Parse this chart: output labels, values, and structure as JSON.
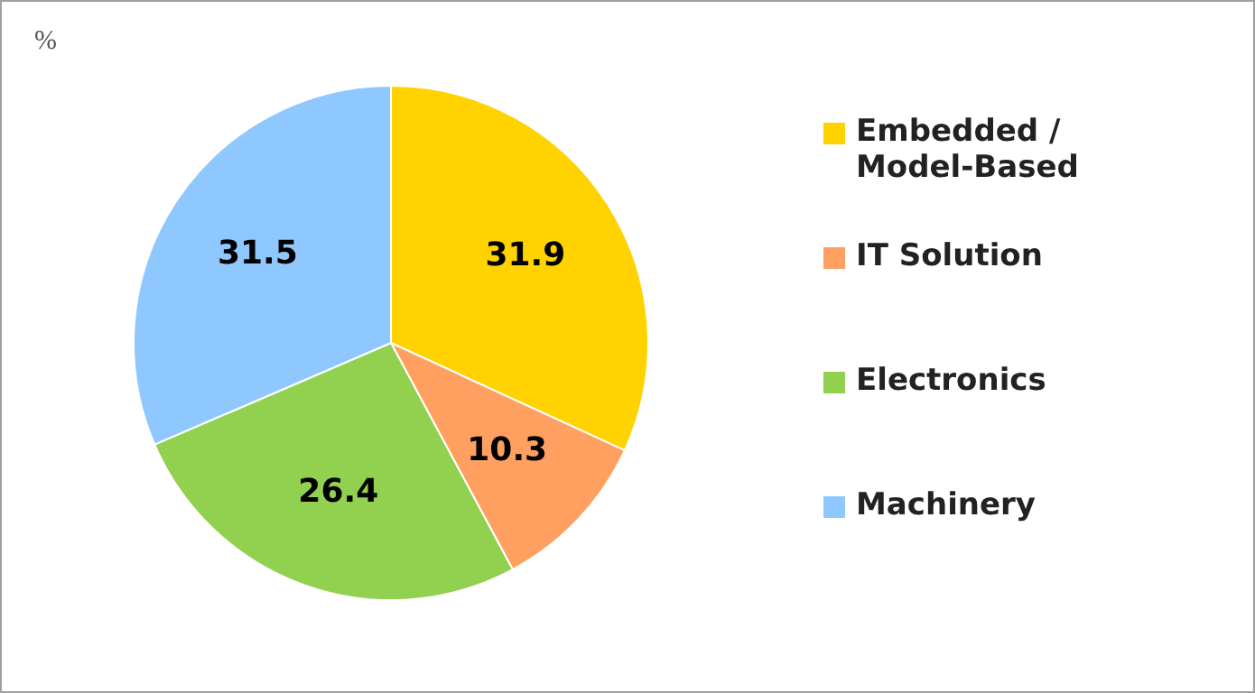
{
  "chart_data": {
    "type": "pie",
    "annotations": [
      "%"
    ],
    "categories": [
      "Embedded / Model-Based",
      "IT Solution",
      "Electronics",
      "Machinery"
    ],
    "values": [
      31.9,
      10.3,
      26.4,
      31.5
    ],
    "colors": [
      "#ffd200",
      "#ffa060",
      "#92d050",
      "#8fc8ff"
    ],
    "data_labels": true,
    "legend": "right"
  }
}
